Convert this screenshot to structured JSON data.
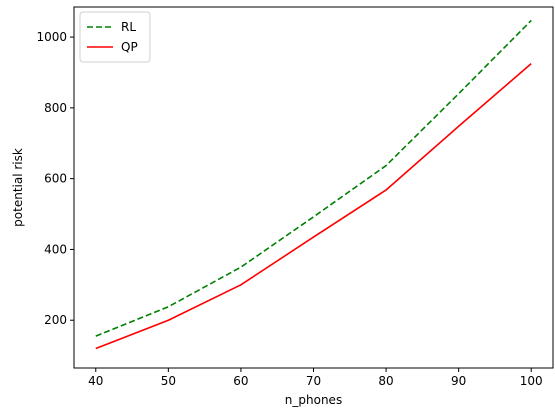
{
  "chart_data": {
    "type": "line",
    "title": "",
    "xlabel": "n_phones",
    "ylabel": "potential risk",
    "x": [
      40,
      50,
      60,
      70,
      80,
      90,
      100
    ],
    "xlim": [
      37,
      103
    ],
    "ylim": [
      65,
      1085
    ],
    "xticks": [
      40,
      50,
      60,
      70,
      80,
      90,
      100
    ],
    "yticks": [
      200,
      400,
      600,
      800,
      1000
    ],
    "grid": false,
    "legend_position": "top-left",
    "series": [
      {
        "name": "RL",
        "color": "#008000",
        "dash": "dashed",
        "values": [
          155,
          238,
          350,
          492,
          637,
          840,
          1047
        ]
      },
      {
        "name": "QP",
        "color": "#ff0000",
        "dash": "solid",
        "values": [
          120,
          200,
          300,
          435,
          568,
          748,
          925
        ]
      }
    ]
  }
}
